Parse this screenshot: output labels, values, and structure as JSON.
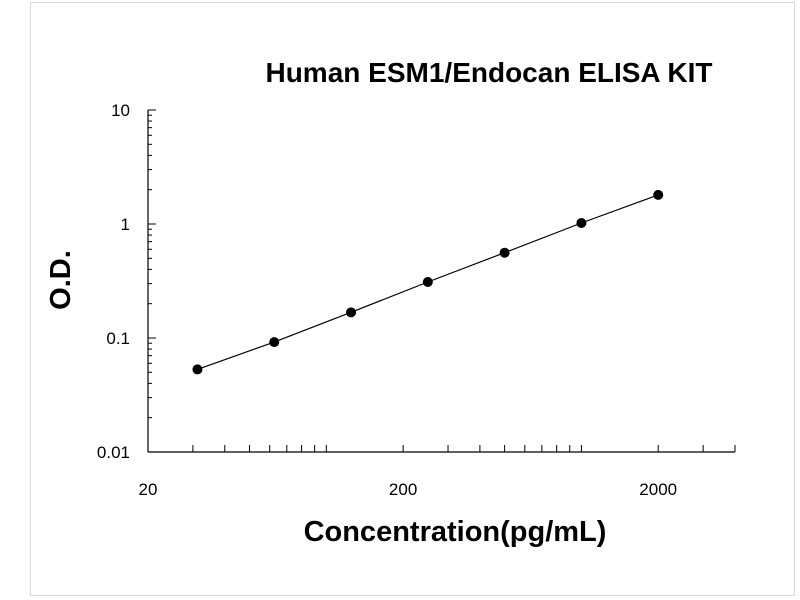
{
  "chart_data": {
    "type": "line",
    "title": "Human ESM1/Endocan ELISA KIT",
    "xlabel": "Concentration(pg/mL)",
    "ylabel": "O.D.",
    "x_scale": "log",
    "y_scale": "log",
    "xlim": [
      20,
      4000
    ],
    "ylim": [
      0.01,
      10
    ],
    "x_ticks": [
      {
        "value": 20,
        "label": "20"
      },
      {
        "value": 200,
        "label": "200"
      },
      {
        "value": 2000,
        "label": "2000"
      }
    ],
    "y_ticks": [
      {
        "value": 10,
        "label": "10"
      },
      {
        "value": 1,
        "label": "1"
      },
      {
        "value": 0.1,
        "label": "0.1"
      },
      {
        "value": 0.01,
        "label": "0.01"
      }
    ],
    "series": [
      {
        "x": [
          31.25,
          62.5,
          125,
          250,
          500,
          1000,
          2000
        ],
        "y": [
          0.053,
          0.092,
          0.168,
          0.31,
          0.56,
          1.02,
          1.8
        ]
      }
    ],
    "grid": false,
    "legend": "none",
    "line_color": "#000000",
    "marker_color": "#000000"
  }
}
